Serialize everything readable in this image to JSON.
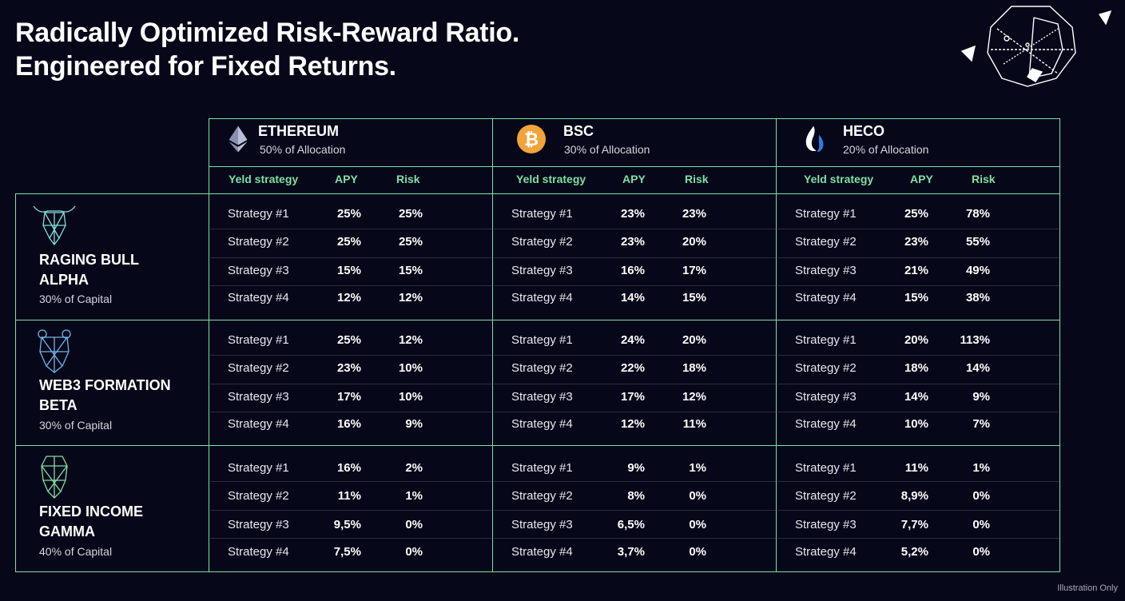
{
  "title": {
    "line1": "Radically Optimized Risk-Reward Ratio.",
    "line2": "Engineered for Fixed Returns."
  },
  "colors": {
    "accent": "#7ee0a3",
    "background": "#07071a",
    "bsc": "#f2a33a",
    "heco": "#2c79e8"
  },
  "chains": [
    {
      "name": "ETHEREUM",
      "allocation": "50% of Allocation",
      "icon": "ethereum-icon",
      "headers": {
        "strategy": "Yeld strategy",
        "apy": "APY",
        "risk": "Risk"
      }
    },
    {
      "name": "BSC",
      "allocation": "30% of Allocation",
      "icon": "bitcoin-icon",
      "headers": {
        "strategy": "Yeld strategy",
        "apy": "APY",
        "risk": "Risk"
      }
    },
    {
      "name": "HECO",
      "allocation": "20% of Allocation",
      "icon": "heco-flame-icon",
      "headers": {
        "strategy": "Yeld strategy",
        "apy": "APY",
        "risk": "Risk"
      }
    }
  ],
  "portfolios": [
    {
      "name_line1": "RAGING BULL",
      "name_line2": "ALPHA",
      "capital": "30% of Capital",
      "icon": "bull-icon",
      "chains": [
        {
          "rows": [
            {
              "strategy": "Strategy #1",
              "apy": "25%",
              "risk": "25%"
            },
            {
              "strategy": "Strategy #2",
              "apy": "25%",
              "risk": "25%"
            },
            {
              "strategy": "Strategy #3",
              "apy": "15%",
              "risk": "15%"
            },
            {
              "strategy": "Strategy #4",
              "apy": "12%",
              "risk": "12%"
            }
          ]
        },
        {
          "rows": [
            {
              "strategy": "Strategy #1",
              "apy": "23%",
              "risk": "23%"
            },
            {
              "strategy": "Strategy #2",
              "apy": "23%",
              "risk": "20%"
            },
            {
              "strategy": "Strategy #3",
              "apy": "16%",
              "risk": "17%"
            },
            {
              "strategy": "Strategy #4",
              "apy": "14%",
              "risk": "15%"
            }
          ]
        },
        {
          "rows": [
            {
              "strategy": "Strategy #1",
              "apy": "25%",
              "risk": "78%"
            },
            {
              "strategy": "Strategy #2",
              "apy": "23%",
              "risk": "55%"
            },
            {
              "strategy": "Strategy #3",
              "apy": "21%",
              "risk": "49%"
            },
            {
              "strategy": "Strategy #4",
              "apy": "15%",
              "risk": "38%"
            }
          ]
        }
      ]
    },
    {
      "name_line1": "WEB3 FORMATION",
      "name_line2": "BETA",
      "capital": "30% of Capital",
      "icon": "bear-icon",
      "chains": [
        {
          "rows": [
            {
              "strategy": "Strategy #1",
              "apy": "25%",
              "risk": "12%"
            },
            {
              "strategy": "Strategy #2",
              "apy": "23%",
              "risk": "10%"
            },
            {
              "strategy": "Strategy #3",
              "apy": "17%",
              "risk": "10%"
            },
            {
              "strategy": "Strategy #4",
              "apy": "16%",
              "risk": "9%"
            }
          ]
        },
        {
          "rows": [
            {
              "strategy": "Strategy #1",
              "apy": "24%",
              "risk": "20%"
            },
            {
              "strategy": "Strategy #2",
              "apy": "22%",
              "risk": "18%"
            },
            {
              "strategy": "Strategy #3",
              "apy": "17%",
              "risk": "12%"
            },
            {
              "strategy": "Strategy #4",
              "apy": "12%",
              "risk": "11%"
            }
          ]
        },
        {
          "rows": [
            {
              "strategy": "Strategy #1",
              "apy": "20%",
              "risk": "113%"
            },
            {
              "strategy": "Strategy #2",
              "apy": "18%",
              "risk": "14%"
            },
            {
              "strategy": "Strategy #3",
              "apy": "14%",
              "risk": "9%"
            },
            {
              "strategy": "Strategy #4",
              "apy": "10%",
              "risk": "7%"
            }
          ]
        }
      ]
    },
    {
      "name_line1": "FIXED INCOME",
      "name_line2": "GAMMA",
      "capital": "40% of Capital",
      "icon": "ape-icon",
      "chains": [
        {
          "rows": [
            {
              "strategy": "Strategy #1",
              "apy": "16%",
              "risk": "2%"
            },
            {
              "strategy": "Strategy #2",
              "apy": "11%",
              "risk": "1%"
            },
            {
              "strategy": "Strategy #3",
              "apy": "9,5%",
              "risk": "0%"
            },
            {
              "strategy": "Strategy #4",
              "apy": "7,5%",
              "risk": "0%"
            }
          ]
        },
        {
          "rows": [
            {
              "strategy": "Strategy #1",
              "apy": "9%",
              "risk": "1%"
            },
            {
              "strategy": "Strategy #2",
              "apy": "8%",
              "risk": "0%"
            },
            {
              "strategy": "Strategy #3",
              "apy": "6,5%",
              "risk": "0%"
            },
            {
              "strategy": "Strategy #4",
              "apy": "3,7%",
              "risk": "0%"
            }
          ]
        },
        {
          "rows": [
            {
              "strategy": "Strategy #1",
              "apy": "11%",
              "risk": "1%"
            },
            {
              "strategy": "Strategy #2",
              "apy": "8,9%",
              "risk": "0%"
            },
            {
              "strategy": "Strategy #3",
              "apy": "7,7%",
              "risk": "0%"
            },
            {
              "strategy": "Strategy #4",
              "apy": "5,2%",
              "risk": "0%"
            }
          ]
        }
      ]
    }
  ],
  "footer": {
    "note": "Illustration Only"
  }
}
